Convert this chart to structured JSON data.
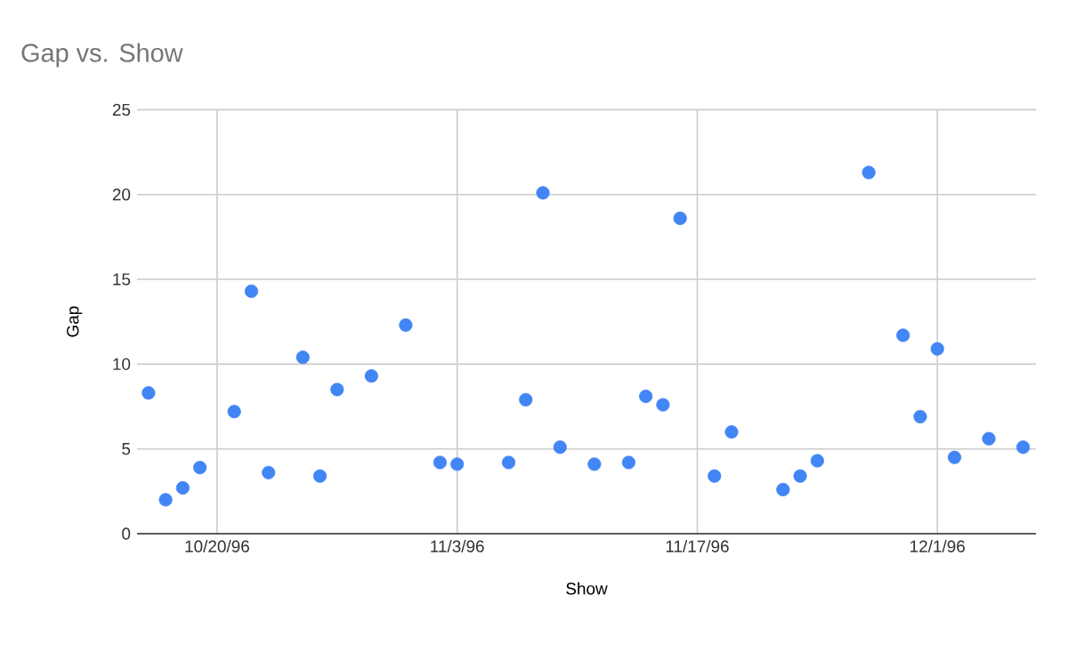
{
  "chart_data": {
    "type": "scatter",
    "title": "Gap vs. Show",
    "xlabel": "Show",
    "ylabel": "Gap",
    "x": [
      "1996-10-16",
      "1996-10-17",
      "1996-10-18",
      "1996-10-19",
      "1996-10-21",
      "1996-10-22",
      "1996-10-23",
      "1996-10-25",
      "1996-10-26",
      "1996-10-27",
      "1996-10-29",
      "1996-10-31",
      "1996-11-02",
      "1996-11-03",
      "1996-11-06",
      "1996-11-07",
      "1996-11-08",
      "1996-11-09",
      "1996-11-11",
      "1996-11-13",
      "1996-11-14",
      "1996-11-15",
      "1996-11-16",
      "1996-11-18",
      "1996-11-19",
      "1996-11-22",
      "1996-11-23",
      "1996-11-24",
      "1996-11-27",
      "1996-11-29",
      "1996-11-30",
      "1996-12-01",
      "1996-12-02",
      "1996-12-04",
      "1996-12-06"
    ],
    "values": [
      8.3,
      2.0,
      2.7,
      3.9,
      7.2,
      14.3,
      3.6,
      10.4,
      3.4,
      8.5,
      9.3,
      12.3,
      4.2,
      4.1,
      4.2,
      7.9,
      20.1,
      5.1,
      4.1,
      4.2,
      8.1,
      7.6,
      18.6,
      3.4,
      6.0,
      2.6,
      3.4,
      4.3,
      21.3,
      11.7,
      6.9,
      10.9,
      4.5,
      5.6,
      5.1
    ],
    "color": "#4285f4",
    "marker": "circle",
    "grid": true,
    "xlim": [
      "1996-10-15T08:00",
      "1996-12-06T18:00"
    ],
    "xticks": [
      {
        "value": "1996-10-20",
        "label": "10/20/96"
      },
      {
        "value": "1996-11-03",
        "label": "11/3/96"
      },
      {
        "value": "1996-11-17",
        "label": "11/17/96"
      },
      {
        "value": "1996-12-01",
        "label": "12/1/96"
      }
    ],
    "ylim": [
      0,
      25
    ],
    "yticks": [
      0,
      5,
      10,
      15,
      20,
      25
    ]
  }
}
